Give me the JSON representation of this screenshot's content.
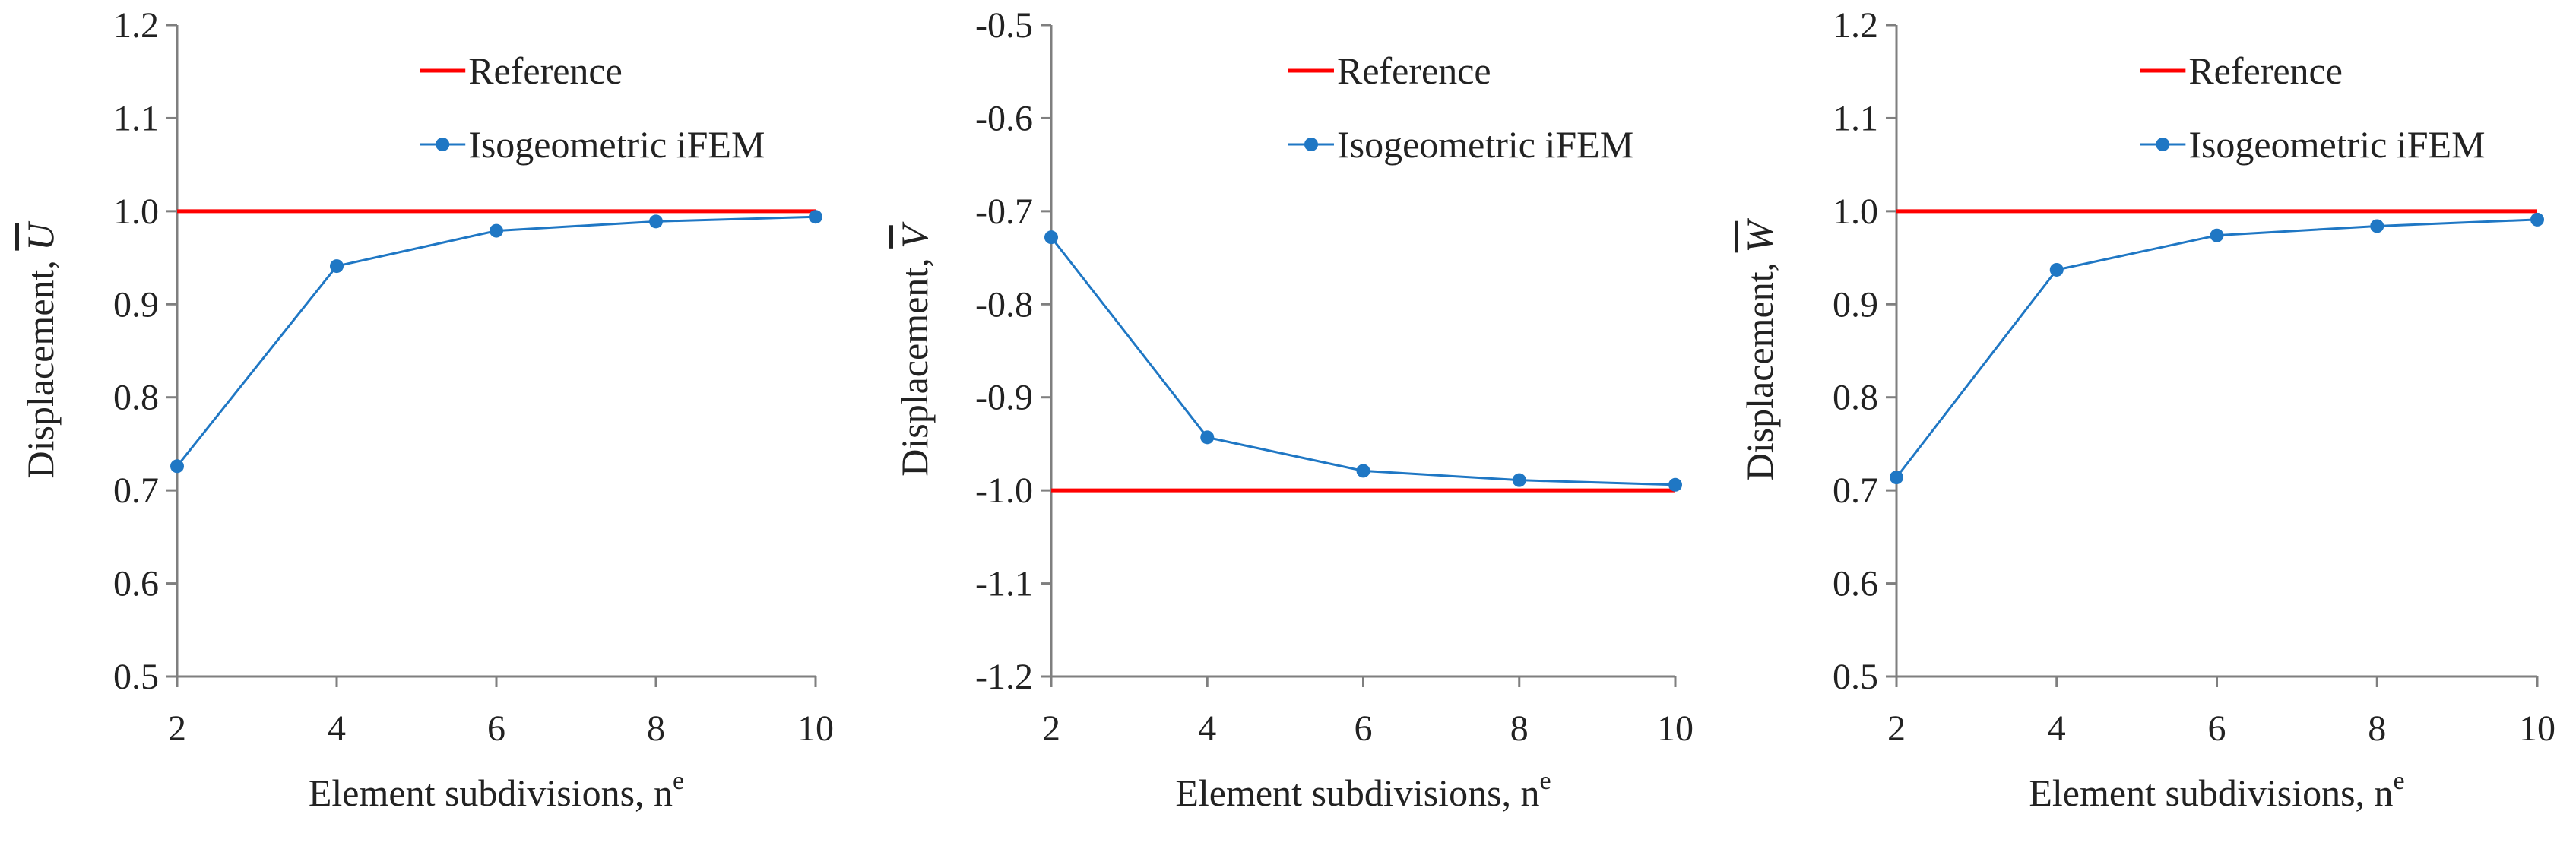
{
  "colors": {
    "reference": "#ff0000",
    "series": "#1f77c4",
    "axis": "#7f7f7f"
  },
  "chart_data": [
    {
      "type": "line",
      "title": "",
      "xlabel": "Element subdivisions, n",
      "xlabel_sup": "e",
      "ylabel": "Displacement, ",
      "ylabel_symbol": "U",
      "xlim": [
        2,
        10
      ],
      "ylim": [
        0.5,
        1.2
      ],
      "x_ticks": [
        "2",
        "4",
        "6",
        "8",
        "10"
      ],
      "y_ticks": [
        "1.2",
        "1.1",
        "1.0",
        "0.9",
        "0.8",
        "0.7",
        "0.6",
        "0.5"
      ],
      "legend_position": "top-right",
      "series": [
        {
          "name": "Reference",
          "x": [
            2,
            10
          ],
          "values": [
            1.0,
            1.0
          ],
          "marker": false
        },
        {
          "name": "Isogeometric iFEM",
          "x": [
            2,
            4,
            6,
            8,
            10
          ],
          "values": [
            0.726,
            0.941,
            0.979,
            0.989,
            0.994
          ],
          "marker": true
        }
      ]
    },
    {
      "type": "line",
      "title": "",
      "xlabel": "Element subdivisions, n",
      "xlabel_sup": "e",
      "ylabel": "Displacement, ",
      "ylabel_symbol": "V",
      "xlim": [
        2,
        10
      ],
      "ylim": [
        -1.2,
        -0.5
      ],
      "x_ticks": [
        "2",
        "4",
        "6",
        "8",
        "10"
      ],
      "y_ticks": [
        "-0.5",
        "-0.6",
        "-0.7",
        "-0.8",
        "-0.9",
        "-1.0",
        "-1.1",
        "-1.2"
      ],
      "legend_position": "top-right",
      "series": [
        {
          "name": "Reference",
          "x": [
            2,
            10
          ],
          "values": [
            -1.0,
            -1.0
          ],
          "marker": false
        },
        {
          "name": "Isogeometric iFEM",
          "x": [
            2,
            4,
            6,
            8,
            10
          ],
          "values": [
            -0.728,
            -0.943,
            -0.979,
            -0.989,
            -0.994
          ],
          "marker": true
        }
      ]
    },
    {
      "type": "line",
      "title": "",
      "xlabel": "Element subdivisions, n",
      "xlabel_sup": "e",
      "ylabel": "Displacement, ",
      "ylabel_symbol": "W",
      "xlim": [
        2,
        10
      ],
      "ylim": [
        0.5,
        1.2
      ],
      "x_ticks": [
        "2",
        "4",
        "6",
        "8",
        "10"
      ],
      "y_ticks": [
        "1.2",
        "1.1",
        "1.0",
        "0.9",
        "0.8",
        "0.7",
        "0.6",
        "0.5"
      ],
      "legend_position": "top-right",
      "series": [
        {
          "name": "Reference",
          "x": [
            2,
            10
          ],
          "values": [
            1.0,
            1.0
          ],
          "marker": false
        },
        {
          "name": "Isogeometric iFEM",
          "x": [
            2,
            4,
            6,
            8,
            10
          ],
          "values": [
            0.714,
            0.937,
            0.974,
            0.984,
            0.991
          ],
          "marker": true
        }
      ]
    }
  ]
}
